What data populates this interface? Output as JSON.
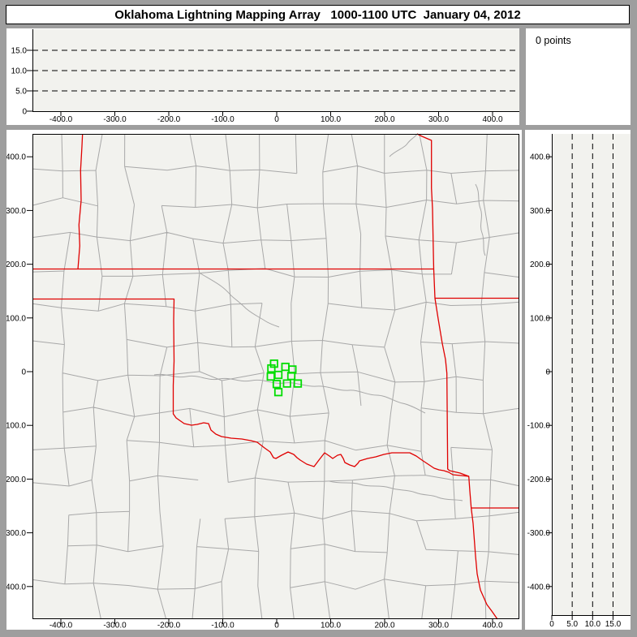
{
  "window": {
    "title": "Oklahoma Lightning Mapping Array   1000-1100 UTC  January 04, 2012"
  },
  "status_panel": {
    "text": "0 points"
  },
  "colors": {
    "state_border": "#e00000",
    "station_marker": "#00dd00",
    "county_line": "#a8a8a8",
    "plot_background": "#f2f2ee",
    "window_background": "#9e9e9e"
  },
  "chart_data": {
    "type": "scatter",
    "points_count": 0,
    "panels": {
      "ew_altitude": {
        "description": "altitude (km) vs east-west distance (km)",
        "points": [],
        "x_ticks": {
          "values": [
            -400,
            -300,
            -200,
            -100,
            0,
            100,
            200,
            300,
            400
          ],
          "labels": [
            "-400.0",
            "-300.0",
            "-200.0",
            "-100.0",
            "0",
            "100.0",
            "200.0",
            "300.0",
            "400.0"
          ]
        },
        "alt_ticks": {
          "values": [
            0,
            5,
            10,
            15
          ],
          "labels": [
            "0",
            "5.0",
            "10.0",
            "15.0"
          ]
        },
        "dashed_alt_lines_km": [
          5,
          10,
          15
        ],
        "xlim": [
          -453,
          450
        ],
        "alt_lim": [
          0,
          20
        ]
      },
      "plan_view_map": {
        "description": "plan view map, distances in km from network center",
        "points": [],
        "x_ticks": {
          "values": [
            -400,
            -300,
            -200,
            -100,
            0,
            100,
            200,
            300,
            400
          ],
          "labels": [
            "-400.0",
            "-300.0",
            "-200.0",
            "-100.0",
            "0",
            "100.0",
            "200.0",
            "300.0",
            "400.0"
          ]
        },
        "y_ticks": {
          "values": [
            400,
            300,
            200,
            100,
            0,
            -100,
            -200,
            -300,
            -400
          ],
          "labels": [
            "400.0",
            "300.0",
            "200.0",
            "100.0",
            "0",
            "-100.0",
            "-200.0",
            "-300.0",
            "-400.0"
          ]
        },
        "stations_km": [
          [
            -5,
            15
          ],
          [
            -10,
            6
          ],
          [
            16,
            9
          ],
          [
            29,
            4
          ],
          [
            -11,
            -9
          ],
          [
            3,
            -6
          ],
          [
            27,
            -8
          ],
          [
            0,
            -23
          ],
          [
            19,
            -22
          ],
          [
            39,
            -22
          ],
          [
            3,
            -38
          ]
        ],
        "xlim": [
          -453,
          450
        ],
        "ylim": [
          -456,
          443
        ]
      },
      "ns_altitude": {
        "description": "north-south distance (km) vs altitude (km)",
        "points": [],
        "alt_ticks": {
          "values": [
            0,
            5,
            10,
            15
          ],
          "labels": [
            "0",
            "5.0",
            "10.0",
            "15.0"
          ]
        },
        "y_ticks": {
          "values": [
            400,
            300,
            200,
            100,
            0,
            -100,
            -200,
            -300,
            -400
          ],
          "labels": [
            "400.0",
            "300.0",
            "200.0",
            "100.0",
            "0",
            "-100.0",
            "-200.0",
            "-300.0",
            "-400.0"
          ]
        },
        "dashed_alt_lines_km": [
          5,
          10,
          15
        ],
        "alt_lim": [
          0,
          19
        ],
        "ylim": [
          -453,
          450
        ]
      }
    }
  }
}
